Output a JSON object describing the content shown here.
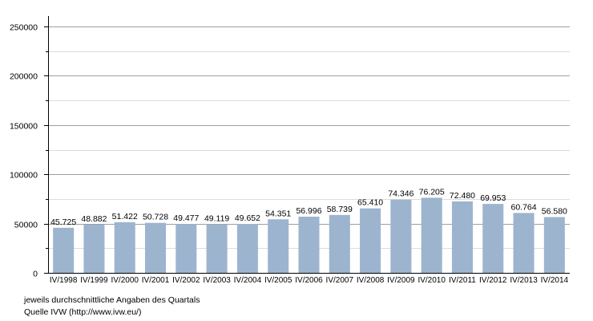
{
  "chart_data": {
    "type": "bar",
    "categories": [
      "IV/1998",
      "IV/1999",
      "IV/2000",
      "IV/2001",
      "IV/2002",
      "IV/2003",
      "IV/2004",
      "IV/2005",
      "IV/2006",
      "IV/2007",
      "IV/2008",
      "IV/2009",
      "IV/2010",
      "IV/2011",
      "IV/2012",
      "IV/2013",
      "IV/2014"
    ],
    "values": [
      45725,
      48882,
      51422,
      50728,
      49477,
      49119,
      49652,
      54351,
      56996,
      58739,
      65410,
      74346,
      76205,
      72480,
      69953,
      60764,
      56580
    ],
    "value_labels": [
      "45.725",
      "48.882",
      "51.422",
      "50.728",
      "49.477",
      "49.119",
      "49.652",
      "54.351",
      "56.996",
      "58.739",
      "65.410",
      "74.346",
      "76.205",
      "72.480",
      "69.953",
      "60.764",
      "56.580"
    ],
    "ylim": [
      0,
      250000
    ],
    "y_ticks": [
      0,
      50000,
      100000,
      150000,
      200000,
      250000
    ],
    "y_tick_labels": [
      "0",
      "50000",
      "100000",
      "150000",
      "200000",
      "250000"
    ],
    "grid": true,
    "bar_color": "#9db4cf",
    "major_grid_color": "#a0a0a0",
    "minor_grid_color": "#dcdcdc",
    "xlabel": "",
    "ylabel": "",
    "title": ""
  },
  "notes": {
    "line1": "jeweils durchschnittliche Angaben des Quartals",
    "line2": "Quelle IVW (http://www.ivw.eu/)"
  }
}
